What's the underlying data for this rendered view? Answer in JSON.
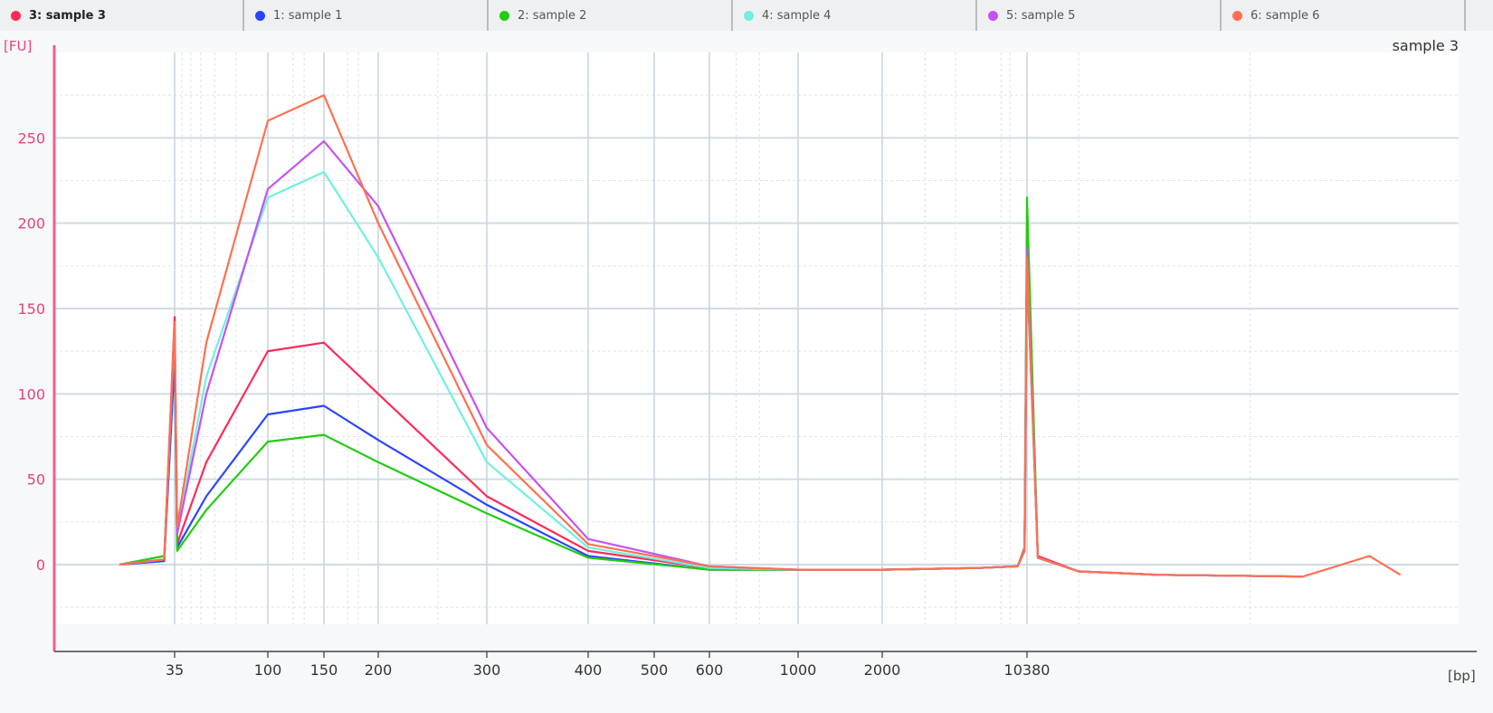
{
  "tabs": [
    {
      "label": "3: sample 3",
      "color": "#ff2a5a",
      "active": true
    },
    {
      "label": "1: sample 1",
      "color": "#2a45ff",
      "active": false
    },
    {
      "label": "2: sample 2",
      "color": "#22cc10",
      "active": false
    },
    {
      "label": "4: sample 4",
      "color": "#6ff0e0",
      "active": false
    },
    {
      "label": "5: sample 5",
      "color": "#c552f0",
      "active": false
    },
    {
      "label": "6: sample 6",
      "color": "#ff7050",
      "active": false
    }
  ],
  "chart_data": {
    "type": "line",
    "title": "sample 3",
    "ylabel": "[FU]",
    "xlabel": "[bp]",
    "ylim": [
      -35,
      300
    ],
    "yticks": [
      0,
      50,
      100,
      150,
      200,
      250
    ],
    "x_scale": "categorical-log (Bioanalyzer sizing ladder)",
    "xticks": [
      "35",
      "100",
      "150",
      "200",
      "300",
      "400",
      "500",
      "600",
      "1000",
      "2000",
      "10380"
    ],
    "grid": true,
    "series": [
      {
        "name": "3: sample 3",
        "color": "#ff2a5a",
        "x": [
          30,
          34,
          35,
          36,
          50,
          100,
          150,
          200,
          300,
          400,
          600,
          1000,
          2000,
          5000,
          9000,
          10000,
          10380,
          10700,
          12000,
          15000,
          20000
        ],
        "y": [
          0,
          3,
          145,
          12,
          60,
          125,
          130,
          100,
          40,
          8,
          -2,
          -3,
          -3,
          -2,
          -1,
          10,
          190,
          5,
          -4,
          -6,
          -7
        ]
      },
      {
        "name": "1: sample 1",
        "color": "#2a45ff",
        "x": [
          30,
          34,
          35,
          36,
          50,
          100,
          150,
          200,
          300,
          400,
          600,
          1000,
          2000,
          5000,
          9000,
          10000,
          10380,
          10700,
          12000,
          15000,
          20000
        ],
        "y": [
          0,
          2,
          120,
          10,
          40,
          88,
          93,
          73,
          35,
          5,
          -3,
          -3,
          -3,
          -2,
          -1,
          8,
          175,
          4,
          -4,
          -6,
          -7
        ]
      },
      {
        "name": "2: sample 2",
        "color": "#22cc10",
        "x": [
          30,
          34,
          35,
          36,
          50,
          100,
          150,
          200,
          300,
          400,
          600,
          1000,
          2000,
          5000,
          9000,
          10000,
          10380,
          10700,
          12000,
          15000,
          20000
        ],
        "y": [
          0,
          5,
          135,
          8,
          32,
          72,
          76,
          60,
          30,
          4,
          -3,
          -3,
          -3,
          -2,
          -1,
          9,
          215,
          4,
          -4,
          -6,
          -7
        ]
      },
      {
        "name": "4: sample 4",
        "color": "#6ff0e0",
        "x": [
          30,
          34,
          35,
          36,
          50,
          100,
          150,
          200,
          300,
          400,
          600,
          1000,
          2000,
          5000,
          9000,
          10000,
          10380,
          10700,
          12000,
          15000,
          20000
        ],
        "y": [
          0,
          3,
          140,
          20,
          110,
          215,
          230,
          180,
          60,
          10,
          -2,
          -3,
          -3,
          -2,
          -1,
          8,
          180,
          4,
          -4,
          -6,
          -7
        ]
      },
      {
        "name": "5: sample 5",
        "color": "#c552f0",
        "x": [
          30,
          34,
          35,
          36,
          50,
          100,
          150,
          200,
          300,
          400,
          600,
          1000,
          2000,
          5000,
          9000,
          10000,
          10380,
          10700,
          12000,
          15000,
          20000
        ],
        "y": [
          0,
          3,
          138,
          18,
          100,
          220,
          248,
          210,
          80,
          15,
          -1,
          -3,
          -3,
          -2,
          -1,
          8,
          185,
          4,
          -4,
          -6,
          -7
        ]
      },
      {
        "name": "6: sample 6",
        "color": "#ff7050",
        "x": [
          30,
          34,
          35,
          36,
          50,
          100,
          150,
          200,
          300,
          400,
          600,
          1000,
          2000,
          5000,
          9000,
          10000,
          10380,
          10700,
          12000,
          15000,
          20000,
          22000,
          23000
        ],
        "y": [
          0,
          3,
          142,
          22,
          130,
          260,
          275,
          200,
          70,
          12,
          -1,
          -3,
          -3,
          -2,
          -1,
          8,
          180,
          4,
          -4,
          -6,
          -7,
          5,
          -6
        ]
      }
    ]
  }
}
